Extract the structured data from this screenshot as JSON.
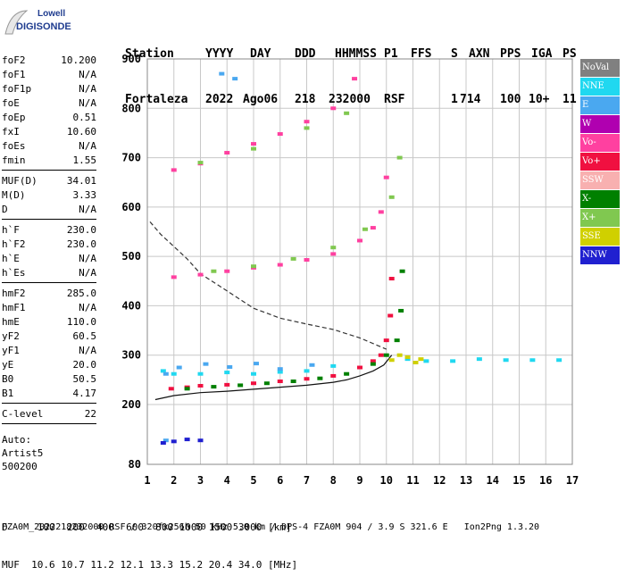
{
  "logo": {
    "line1": "Lowell",
    "line2": "DIGISONDE"
  },
  "header": {
    "labels": [
      "Station",
      "YYYY",
      "DAY",
      "DDD",
      "HHMMSS",
      "P1",
      "FFS",
      "S",
      "AXN",
      "PPS",
      "IGA",
      "PS"
    ],
    "values": [
      "Fortaleza",
      "2022",
      "Ago06",
      "218",
      "232000",
      "RSF",
      "",
      "1",
      "714",
      "100",
      "10+",
      "11"
    ]
  },
  "params": {
    "group1": [
      [
        "foF2",
        "10.200"
      ],
      [
        "foF1",
        "N/A"
      ],
      [
        "foF1p",
        "N/A"
      ],
      [
        "foE",
        "N/A"
      ],
      [
        "foEp",
        "0.51"
      ],
      [
        "fxI",
        "10.60"
      ],
      [
        "foEs",
        "N/A"
      ],
      [
        "fmin",
        "1.55"
      ]
    ],
    "group2": [
      [
        "MUF(D)",
        "34.01"
      ],
      [
        "M(D)",
        "3.33"
      ],
      [
        "D",
        "N/A"
      ]
    ],
    "group3": [
      [
        "h`F",
        "230.0"
      ],
      [
        "h`F2",
        "230.0"
      ],
      [
        "h`E",
        "N/A"
      ],
      [
        "h`Es",
        "N/A"
      ]
    ],
    "group4": [
      [
        "hmF2",
        "285.0"
      ],
      [
        "hmF1",
        "N/A"
      ],
      [
        "hmE",
        "110.0"
      ],
      [
        "yF2",
        "60.5"
      ],
      [
        "yF1",
        "N/A"
      ],
      [
        "yE",
        "20.0"
      ],
      [
        "B0",
        "50.5"
      ],
      [
        "B1",
        "4.17"
      ]
    ],
    "group5": [
      [
        "C-level",
        "22"
      ]
    ],
    "auto": [
      "Auto:",
      "Artist5",
      "500200"
    ]
  },
  "legend": [
    {
      "label": "NoVal",
      "color": "#808080"
    },
    {
      "label": "NNE",
      "color": "#20d8f0"
    },
    {
      "label": "E",
      "color": "#4aa8f0"
    },
    {
      "label": "W",
      "color": "#b000b0"
    },
    {
      "label": "Vo-",
      "color": "#ff40a0"
    },
    {
      "label": "Vo+",
      "color": "#f01040"
    },
    {
      "label": "SSW",
      "color": "#f8b0b0"
    },
    {
      "label": "X-",
      "color": "#008000"
    },
    {
      "label": "X+",
      "color": "#80c850"
    },
    {
      "label": "SSE",
      "color": "#d0d000"
    },
    {
      "label": "NNW",
      "color": "#2020d0"
    }
  ],
  "footer": {
    "line1": "D     100  200  400  600  800 1000 1500 3000 [km]",
    "line2": "MUF  10.6 10.7 11.2 12.1 13.3 15.2 20.4 34.0 [MHz]",
    "line3": "FZA0M_2022218232000.RSF / 320fx256h 50 kHz 5.0 km / DPS-4 FZA0M 904 / 3.9 S 321.6 E   Ion2Png 1.3.20"
  },
  "chart_data": {
    "type": "scatter",
    "xlabel": "",
    "ylabel": "",
    "xlim": [
      1,
      17
    ],
    "ylim": [
      80,
      900
    ],
    "xticks": [
      1,
      2,
      3,
      4,
      5,
      6,
      7,
      8,
      9,
      10,
      11,
      12,
      13,
      14,
      15,
      16,
      17
    ],
    "yticks": [
      80,
      200,
      300,
      400,
      500,
      600,
      700,
      800,
      900
    ],
    "grid": true,
    "series": [
      {
        "name": "Vo+",
        "x": [
          1.9,
          2.5,
          3.0,
          4.0,
          5.0,
          6.0,
          7.0,
          8.0,
          9.0,
          9.5,
          9.8,
          10.0,
          10.15,
          10.2
        ],
        "y": [
          232,
          235,
          238,
          240,
          243,
          247,
          252,
          258,
          275,
          288,
          300,
          330,
          380,
          455
        ]
      },
      {
        "name": "X-",
        "x": [
          2.5,
          3.5,
          4.5,
          5.5,
          6.5,
          7.5,
          8.5,
          9.5,
          10.0,
          10.4,
          10.55,
          10.6
        ],
        "y": [
          232,
          236,
          239,
          243,
          247,
          253,
          262,
          282,
          300,
          330,
          390,
          470
        ]
      },
      {
        "name": "NNE",
        "x": [
          1.6,
          2.0,
          3.0,
          4.0,
          5.0,
          6.0,
          7.0,
          8.0,
          10.8,
          11.5,
          12.5,
          13.5,
          14.5,
          15.5,
          16.5
        ],
        "y": [
          268,
          262,
          262,
          265,
          262,
          266,
          268,
          278,
          292,
          288,
          288,
          292,
          290,
          290,
          290
        ]
      },
      {
        "name": "E",
        "x": [
          1.7,
          2.2,
          3.2,
          4.1,
          5.1,
          6.0,
          7.2,
          3.8,
          4.3,
          1.7
        ],
        "y": [
          262,
          275,
          282,
          276,
          283,
          272,
          280,
          870,
          860,
          128
        ]
      },
      {
        "name": "SSE",
        "x": [
          10.2,
          10.5,
          10.8,
          11.1,
          11.3
        ],
        "y": [
          290,
          300,
          296,
          285,
          292
        ]
      },
      {
        "name": "Vo-",
        "x": [
          2.0,
          3.0,
          4.0,
          5.0,
          6.0,
          7.0,
          8.0,
          9.0,
          9.5,
          9.8,
          10.0,
          2.0,
          3.0,
          4.0,
          5.0,
          6.0,
          7.0,
          8.0,
          8.8
        ],
        "y": [
          458,
          463,
          470,
          477,
          483,
          493,
          505,
          532,
          558,
          590,
          660,
          675,
          688,
          710,
          728,
          748,
          773,
          800,
          860
        ]
      },
      {
        "name": "X+",
        "x": [
          3.5,
          5.0,
          6.5,
          8.0,
          9.2,
          10.2,
          10.5,
          3.0,
          5.0,
          7.0,
          8.5
        ],
        "y": [
          470,
          480,
          495,
          518,
          555,
          620,
          700,
          690,
          718,
          760,
          790
        ]
      },
      {
        "name": "NNW",
        "x": [
          1.6,
          2.0,
          2.5,
          3.0
        ],
        "y": [
          123,
          126,
          130,
          128
        ]
      }
    ],
    "curves": [
      {
        "name": "profile",
        "x": [
          1.3,
          2.0,
          3.0,
          4.0,
          5.0,
          6.0,
          7.0,
          8.0,
          8.5,
          9.0,
          9.5,
          9.9,
          10.2
        ],
        "y": [
          210,
          218,
          224,
          227,
          231,
          235,
          239,
          245,
          250,
          258,
          268,
          280,
          300
        ]
      },
      {
        "name": "MUF",
        "x": [
          1.1,
          1.5,
          2.0,
          2.5,
          3.0,
          4.0,
          5.0,
          6.0,
          7.0,
          8.0,
          9.0,
          10.0
        ],
        "y": [
          570,
          545,
          520,
          495,
          465,
          430,
          395,
          375,
          363,
          352,
          335,
          312
        ]
      }
    ]
  }
}
